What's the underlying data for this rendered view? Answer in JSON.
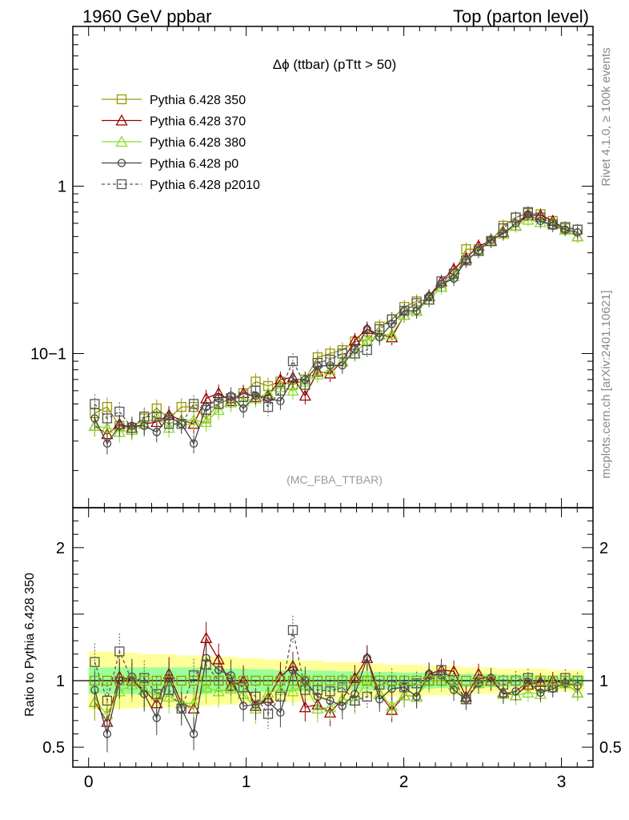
{
  "header": {
    "left": "1960 GeV ppbar",
    "right": "Top (parton level)"
  },
  "side_labels": {
    "rivet": "Rivet 4.1.0, ≥ 100k events",
    "mcplots": "mcplots.cern.ch [arXiv:2401.10621]"
  },
  "chart_data": [
    {
      "panel": "main",
      "type": "line",
      "title": "Δϕ (ttbar) (pTtt > 50)",
      "watermark": "(MC_FBA_TTBAR)",
      "yscale": "log",
      "xlim": [
        -0.1,
        3.2
      ],
      "ylim": [
        0.012,
        9
      ],
      "yticks": [
        {
          "value": 1,
          "label": "1"
        },
        {
          "value": 0.1,
          "label": "10−1"
        }
      ],
      "x": [
        0.039,
        0.118,
        0.196,
        0.275,
        0.353,
        0.432,
        0.51,
        0.589,
        0.667,
        0.746,
        0.825,
        0.903,
        0.982,
        1.06,
        1.139,
        1.217,
        1.296,
        1.374,
        1.453,
        1.532,
        1.61,
        1.689,
        1.767,
        1.846,
        1.924,
        2.003,
        2.081,
        2.16,
        2.238,
        2.317,
        2.395,
        2.474,
        2.553,
        2.631,
        2.71,
        2.788,
        2.867,
        2.945,
        3.024,
        3.102
      ],
      "series": [
        {
          "name": "Pythia 6.428 350",
          "color": "#999900",
          "marker": "square",
          "dash": false,
          "values": [
            0.044,
            0.048,
            0.037,
            0.036,
            0.041,
            0.047,
            0.041,
            0.048,
            0.048,
            0.041,
            0.05,
            0.054,
            0.058,
            0.068,
            0.064,
            0.068,
            0.065,
            0.07,
            0.095,
            0.1,
            0.105,
            0.118,
            0.12,
            0.145,
            0.16,
            0.19,
            0.205,
            0.21,
            0.25,
            0.3,
            0.42,
            0.42,
            0.47,
            0.58,
            0.65,
            0.69,
            0.68,
            0.62,
            0.56,
            0.55
          ]
        },
        {
          "name": "Pythia 6.428 370",
          "color": "#990000",
          "marker": "triangle",
          "dash": false,
          "values": [
            0.037,
            0.033,
            0.038,
            0.036,
            0.038,
            0.039,
            0.043,
            0.04,
            0.038,
            0.054,
            0.058,
            0.052,
            0.058,
            0.055,
            0.056,
            0.07,
            0.072,
            0.056,
            0.078,
            0.076,
            0.09,
            0.12,
            0.14,
            0.13,
            0.125,
            0.17,
            0.18,
            0.22,
            0.27,
            0.32,
            0.37,
            0.44,
            0.47,
            0.53,
            0.58,
            0.67,
            0.67,
            0.62,
            0.55,
            0.5
          ]
        },
        {
          "name": "Pythia 6.428 380",
          "color": "#88dd22",
          "marker": "triangle",
          "dash": false,
          "values": [
            0.037,
            0.036,
            0.034,
            0.035,
            0.038,
            0.042,
            0.036,
            0.04,
            0.04,
            0.039,
            0.046,
            0.051,
            0.052,
            0.054,
            0.058,
            0.063,
            0.06,
            0.068,
            0.075,
            0.08,
            0.09,
            0.1,
            0.12,
            0.13,
            0.13,
            0.17,
            0.18,
            0.21,
            0.25,
            0.29,
            0.36,
            0.41,
            0.48,
            0.52,
            0.58,
            0.63,
            0.61,
            0.6,
            0.55,
            0.5
          ]
        },
        {
          "name": "Pythia 6.428 p0",
          "color": "#444444",
          "marker": "circle",
          "dash": false,
          "values": [
            0.041,
            0.029,
            0.037,
            0.037,
            0.037,
            0.034,
            0.042,
            0.038,
            0.029,
            0.048,
            0.054,
            0.056,
            0.047,
            0.056,
            0.054,
            0.052,
            0.07,
            0.07,
            0.084,
            0.085,
            0.085,
            0.106,
            0.14,
            0.125,
            0.15,
            0.18,
            0.18,
            0.22,
            0.26,
            0.28,
            0.36,
            0.41,
            0.48,
            0.52,
            0.6,
            0.68,
            0.62,
            0.58,
            0.55,
            0.53
          ]
        },
        {
          "name": "Pythia 6.428 p2010",
          "color": "#555555",
          "marker": "square",
          "dash": true,
          "values": [
            0.05,
            0.041,
            0.045,
            0.036,
            0.042,
            0.042,
            0.038,
            0.038,
            0.05,
            0.046,
            0.05,
            0.054,
            0.055,
            0.06,
            0.048,
            0.06,
            0.09,
            0.065,
            0.088,
            0.092,
            0.1,
            0.1,
            0.105,
            0.14,
            0.16,
            0.18,
            0.2,
            0.21,
            0.27,
            0.3,
            0.36,
            0.41,
            0.47,
            0.56,
            0.65,
            0.7,
            0.65,
            0.59,
            0.57,
            0.55
          ]
        }
      ]
    },
    {
      "panel": "ratio",
      "type": "line",
      "ylabel": "Ratio to Pythia 6.428 350",
      "xlabel": "",
      "xlim": [
        -0.1,
        3.2
      ],
      "ylim": [
        0.35,
        2.3
      ],
      "xticks": [
        0,
        1,
        2,
        3
      ],
      "yticks": [
        {
          "value": 0.5,
          "label": "0.5"
        },
        {
          "value": 1,
          "label": "1"
        },
        {
          "value": 2,
          "label": "2"
        }
      ],
      "band_inner": [
        0.1,
        0.1,
        0.1,
        0.1,
        0.1,
        0.1,
        0.1,
        0.1,
        0.1,
        0.1,
        0.09,
        0.09,
        0.09,
        0.085,
        0.085,
        0.08,
        0.08,
        0.08,
        0.075,
        0.075,
        0.07,
        0.07,
        0.07,
        0.065,
        0.065,
        0.06,
        0.06,
        0.06,
        0.055,
        0.055,
        0.05,
        0.05,
        0.05,
        0.045,
        0.045,
        0.045,
        0.04,
        0.04,
        0.04,
        0.04
      ],
      "band_outer": [
        0.22,
        0.22,
        0.21,
        0.21,
        0.2,
        0.2,
        0.2,
        0.19,
        0.19,
        0.19,
        0.18,
        0.18,
        0.17,
        0.17,
        0.16,
        0.16,
        0.16,
        0.15,
        0.15,
        0.14,
        0.14,
        0.14,
        0.13,
        0.13,
        0.12,
        0.12,
        0.12,
        0.11,
        0.11,
        0.11,
        0.1,
        0.1,
        0.1,
        0.09,
        0.09,
        0.09,
        0.09,
        0.08,
        0.08,
        0.08
      ],
      "series": [
        {
          "name": "Pythia 6.428 350",
          "values": [
            1,
            1,
            1,
            1,
            1,
            1,
            1,
            1,
            1,
            1,
            1,
            1,
            1,
            1,
            1,
            1,
            1,
            1,
            1,
            1,
            1,
            1,
            1,
            1,
            1,
            1,
            1,
            1,
            1,
            1,
            1,
            1,
            1,
            1,
            1,
            1,
            1,
            1,
            1,
            1
          ]
        },
        {
          "name": "Pythia 6.428 370",
          "values": [
            0.84,
            0.69,
            1.03,
            1.0,
            0.93,
            0.83,
            1.05,
            0.83,
            0.79,
            1.32,
            1.16,
            0.96,
            1.0,
            0.81,
            0.87,
            1.03,
            1.11,
            0.8,
            0.82,
            0.76,
            0.86,
            1.02,
            1.17,
            0.9,
            0.78,
            0.89,
            0.88,
            1.05,
            1.08,
            1.07,
            0.88,
            1.05,
            1.0,
            0.91,
            0.89,
            0.97,
            0.99,
            1.0,
            0.98,
            0.91
          ]
        },
        {
          "name": "Pythia 6.428 380",
          "values": [
            0.84,
            0.75,
            0.92,
            0.97,
            0.93,
            0.89,
            0.88,
            0.83,
            0.83,
            0.95,
            0.92,
            0.94,
            0.9,
            0.79,
            0.91,
            0.93,
            0.92,
            0.97,
            0.79,
            0.8,
            0.86,
            0.85,
            1.0,
            0.9,
            0.81,
            0.89,
            0.88,
            1.0,
            1.0,
            0.97,
            0.86,
            0.98,
            1.02,
            0.9,
            0.89,
            0.91,
            0.9,
            0.97,
            0.98,
            0.91
          ]
        },
        {
          "name": "Pythia 6.428 p0",
          "values": [
            0.93,
            0.6,
            1.0,
            1.03,
            0.9,
            0.72,
            1.02,
            0.79,
            0.6,
            1.17,
            1.08,
            1.04,
            0.81,
            0.82,
            0.84,
            0.76,
            1.08,
            1.0,
            0.88,
            0.85,
            0.81,
            0.9,
            1.17,
            0.86,
            0.94,
            0.95,
            0.88,
            1.05,
            1.04,
            0.93,
            0.86,
            0.98,
            1.02,
            0.9,
            0.92,
            0.99,
            0.91,
            0.94,
            0.98,
            0.96
          ]
        },
        {
          "name": "Pythia 6.428 p2010",
          "values": [
            1.14,
            0.85,
            1.22,
            1.0,
            1.02,
            0.9,
            0.93,
            0.79,
            1.04,
            1.12,
            1.0,
            1.0,
            0.95,
            0.88,
            0.75,
            0.88,
            1.38,
            0.93,
            0.93,
            0.92,
            0.95,
            0.85,
            0.88,
            0.97,
            1.0,
            0.95,
            0.98,
            1.0,
            1.08,
            1.0,
            0.86,
            1.0,
            1.0,
            0.97,
            1.0,
            1.02,
            0.96,
            0.95,
            1.02,
            1.0
          ]
        }
      ]
    }
  ]
}
